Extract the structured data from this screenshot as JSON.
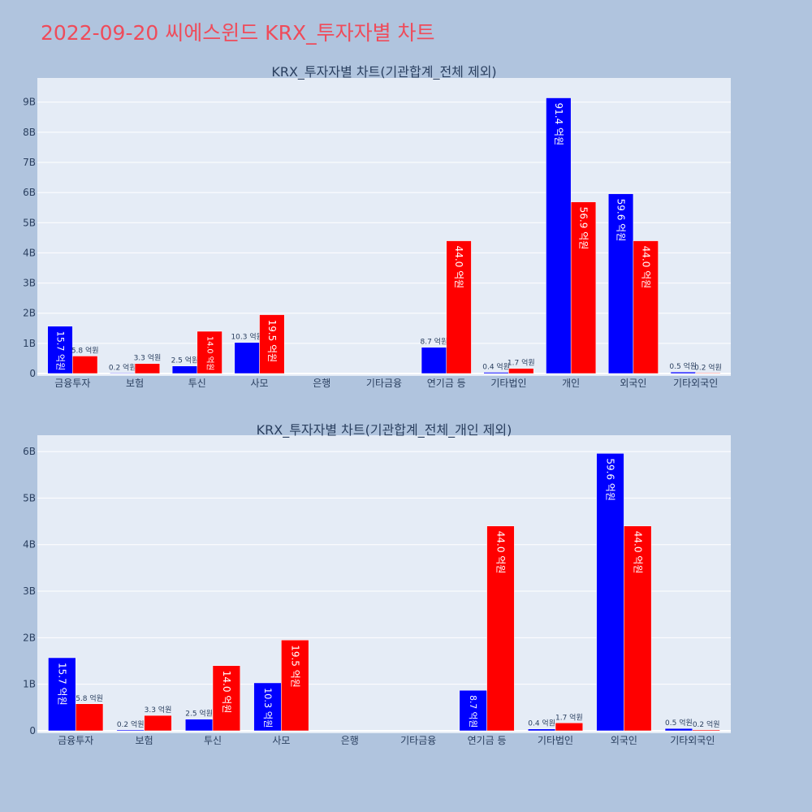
{
  "title": "2022-09-20 씨에스윈드 KRX_투자자별 차트",
  "colors": {
    "background": "#b0c4de",
    "plot_bg": "#e5ecf6",
    "title": "#ef4b5a",
    "series_a": "#0000ff",
    "series_b": "#ff0000"
  },
  "chart_data": [
    {
      "type": "bar",
      "title": "KRX_투자자별 차트(기관합계_전체 제외)",
      "categories": [
        "금융투자",
        "보험",
        "투신",
        "사모",
        "은행",
        "기타금융",
        "연기금 등",
        "기타법인",
        "개인",
        "외국인",
        "기타외국인"
      ],
      "ylim": [
        0,
        9800000000
      ],
      "yticks": [
        0,
        1000000000,
        2000000000,
        3000000000,
        4000000000,
        5000000000,
        6000000000,
        7000000000,
        8000000000,
        9000000000
      ],
      "ytick_labels": [
        "0",
        "1B",
        "2B",
        "3B",
        "4B",
        "5B",
        "6B",
        "7B",
        "8B",
        "9B"
      ],
      "grid": true,
      "series": [
        {
          "color": "#0000ff",
          "values": [
            1570000000,
            20000000,
            250000000,
            1030000000,
            0,
            0,
            870000000,
            40000000,
            9140000000,
            5960000000,
            50000000
          ],
          "labels": [
            "15.7 억원",
            "0.2 억원",
            "2.5 억원",
            "10.3 억원",
            "",
            "",
            "8.7 억원",
            "0.4 억원",
            "91.4 억원",
            "59.6 억원",
            "0.5 억원"
          ]
        },
        {
          "color": "#ff0000",
          "values": [
            580000000,
            330000000,
            1400000000,
            1950000000,
            0,
            0,
            4400000000,
            170000000,
            5690000000,
            4400000000,
            20000000
          ],
          "labels": [
            "5.8 억원",
            "3.3 억원",
            "14.0 억원",
            "19.5 억원",
            "",
            "",
            "44.0 억원",
            "1.7 억원",
            "56.9 억원",
            "44.0 억원",
            "0.2 억원"
          ]
        }
      ]
    },
    {
      "type": "bar",
      "title": "KRX_투자자별 차트(기관합계_전체_개인 제외)",
      "categories": [
        "금융투자",
        "보험",
        "투신",
        "사모",
        "은행",
        "기타금융",
        "연기금 등",
        "기타법인",
        "외국인",
        "기타외국인"
      ],
      "ylim": [
        0,
        6350000000
      ],
      "yticks": [
        0,
        1000000000,
        2000000000,
        3000000000,
        4000000000,
        5000000000,
        6000000000
      ],
      "ytick_labels": [
        "0",
        "1B",
        "2B",
        "3B",
        "4B",
        "5B",
        "6B"
      ],
      "grid": true,
      "series": [
        {
          "color": "#0000ff",
          "values": [
            1570000000,
            20000000,
            250000000,
            1030000000,
            0,
            0,
            870000000,
            40000000,
            5960000000,
            50000000
          ],
          "labels": [
            "15.7 억원",
            "0.2 억원",
            "2.5 억원",
            "10.3 억원",
            "",
            "",
            "8.7 억원",
            "0.4 억원",
            "59.6 억원",
            "0.5 억원"
          ]
        },
        {
          "color": "#ff0000",
          "values": [
            580000000,
            330000000,
            1400000000,
            1950000000,
            0,
            0,
            4400000000,
            170000000,
            4400000000,
            20000000
          ],
          "labels": [
            "5.8 억원",
            "3.3 억원",
            "14.0 억원",
            "19.5 억원",
            "",
            "",
            "44.0 억원",
            "1.7 억원",
            "44.0 억원",
            "0.2 억원"
          ]
        }
      ]
    }
  ]
}
